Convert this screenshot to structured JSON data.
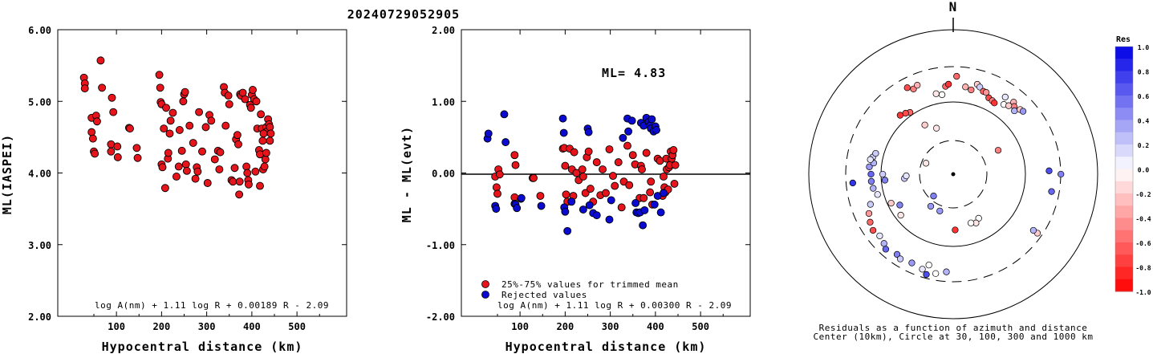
{
  "title": "20240729052905",
  "chart_data": [
    {
      "type": "scatter",
      "panel": "ml-vs-distance",
      "xlabel": "Hypocentral distance (km)",
      "ylabel": "ML(IASPEI)",
      "xticks": [
        "100",
        "200",
        "300",
        "400",
        "500"
      ],
      "yticks": [
        "2.00",
        "3.00",
        "4.00",
        "5.00",
        "6.00"
      ],
      "xlim": [
        -30,
        610
      ],
      "ylim": [
        2.0,
        6.0
      ],
      "formula": "log A(nm) + 1.11 log R + 0.00189 R - 2.09",
      "marker_color": "#e8141c",
      "points": [
        [
          28,
          5.33
        ],
        [
          30,
          5.25
        ],
        [
          30,
          5.18
        ],
        [
          45,
          4.77
        ],
        [
          45,
          4.57
        ],
        [
          48,
          4.48
        ],
        [
          50,
          4.3
        ],
        [
          52,
          4.27
        ],
        [
          55,
          4.8
        ],
        [
          57,
          4.72
        ],
        [
          65,
          5.57
        ],
        [
          68,
          5.19
        ],
        [
          88,
          4.4
        ],
        [
          88,
          4.3
        ],
        [
          90,
          5.05
        ],
        [
          93,
          4.85
        ],
        [
          102,
          4.37
        ],
        [
          103,
          4.22
        ],
        [
          128,
          4.63
        ],
        [
          130,
          4.62
        ],
        [
          145,
          4.35
        ],
        [
          147,
          4.21
        ],
        [
          195,
          5.37
        ],
        [
          197,
          5.19
        ],
        [
          198,
          4.99
        ],
        [
          200,
          4.96
        ],
        [
          200,
          4.12
        ],
        [
          202,
          4.08
        ],
        [
          205,
          4.62
        ],
        [
          208,
          3.79
        ],
        [
          210,
          4.91
        ],
        [
          214,
          4.2
        ],
        [
          215,
          4.28
        ],
        [
          218,
          4.55
        ],
        [
          220,
          4.73
        ],
        [
          225,
          4.84
        ],
        [
          233,
          3.95
        ],
        [
          238,
          4.09
        ],
        [
          240,
          4.6
        ],
        [
          245,
          4.31
        ],
        [
          248,
          5.0
        ],
        [
          250,
          5.1
        ],
        [
          252,
          5.13
        ],
        [
          254,
          4.12
        ],
        [
          256,
          4.03
        ],
        [
          262,
          4.66
        ],
        [
          270,
          4.42
        ],
        [
          275,
          3.92
        ],
        [
          278,
          4.08
        ],
        [
          280,
          4.02
        ],
        [
          283,
          4.85
        ],
        [
          290,
          4.3
        ],
        [
          298,
          4.64
        ],
        [
          302,
          3.86
        ],
        [
          306,
          4.81
        ],
        [
          310,
          4.73
        ],
        [
          318,
          4.19
        ],
        [
          325,
          4.31
        ],
        [
          328,
          4.05
        ],
        [
          330,
          4.29
        ],
        [
          338,
          5.2
        ],
        [
          340,
          5.12
        ],
        [
          342,
          4.66
        ],
        [
          348,
          5.08
        ],
        [
          350,
          4.96
        ],
        [
          355,
          3.9
        ],
        [
          358,
          3.88
        ],
        [
          362,
          4.07
        ],
        [
          365,
          4.47
        ],
        [
          368,
          4.53
        ],
        [
          370,
          4.4
        ],
        [
          372,
          3.7
        ],
        [
          373,
          3.88
        ],
        [
          374,
          5.1
        ],
        [
          376,
          5.08
        ],
        [
          380,
          5.12
        ],
        [
          385,
          5.03
        ],
        [
          388,
          4.09
        ],
        [
          390,
          4.0
        ],
        [
          392,
          3.9
        ],
        [
          393,
          3.84
        ],
        [
          396,
          4.95
        ],
        [
          398,
          4.91
        ],
        [
          400,
          5.09
        ],
        [
          402,
          5.16
        ],
        [
          405,
          5.03
        ],
        [
          408,
          4.02
        ],
        [
          410,
          5.0
        ],
        [
          412,
          4.62
        ],
        [
          416,
          4.32
        ],
        [
          418,
          4.26
        ],
        [
          420,
          4.82
        ],
        [
          422,
          4.62
        ],
        [
          424,
          4.45
        ],
        [
          425,
          4.05
        ],
        [
          428,
          4.09
        ],
        [
          430,
          4.19
        ],
        [
          432,
          4.64
        ],
        [
          434,
          4.58
        ],
        [
          436,
          4.75
        ],
        [
          438,
          4.68
        ],
        [
          440,
          4.64
        ],
        [
          442,
          4.55
        ],
        [
          418,
          3.82
        ],
        [
          432,
          4.28
        ],
        [
          426,
          4.55
        ],
        [
          440,
          4.45
        ]
      ]
    },
    {
      "type": "scatter",
      "panel": "residual-vs-distance",
      "xlabel": "Hypocentral distance (km)",
      "ylabel": "ML - ML(evt)",
      "xticks": [
        "100",
        "200",
        "300",
        "400",
        "500"
      ],
      "yticks": [
        "-2.00",
        "-1.00",
        "0.00",
        "1.00",
        "2.00"
      ],
      "xlim": [
        -30,
        610
      ],
      "ylim": [
        -2.0,
        2.0
      ],
      "annotation": "ML= 4.83",
      "formula": "log A(nm) + 1.11 log R + 0.00300 R - 2.09",
      "legend": [
        "25%-75% values for trimmed mean",
        "Rejected values"
      ],
      "legend_colors": [
        "#e8141c",
        "#0a0ad2"
      ],
      "trimmed_points": [
        [
          45,
          -0.05
        ],
        [
          48,
          -0.2
        ],
        [
          50,
          -0.29
        ],
        [
          52,
          0.05
        ],
        [
          55,
          -0.02
        ],
        [
          88,
          0.25
        ],
        [
          90,
          0.11
        ],
        [
          88,
          -0.34
        ],
        [
          102,
          -0.36
        ],
        [
          128,
          -0.07
        ],
        [
          130,
          -0.07
        ],
        [
          145,
          -0.32
        ],
        [
          195,
          0.34
        ],
        [
          198,
          0.35
        ],
        [
          200,
          0.1
        ],
        [
          202,
          -0.3
        ],
        [
          205,
          -0.4
        ],
        [
          210,
          0.34
        ],
        [
          215,
          0.05
        ],
        [
          218,
          -0.32
        ],
        [
          220,
          0.29
        ],
        [
          225,
          0.0
        ],
        [
          230,
          -0.1
        ],
        [
          238,
          0.05
        ],
        [
          240,
          -0.05
        ],
        [
          245,
          -0.28
        ],
        [
          248,
          0.22
        ],
        [
          252,
          0.3
        ],
        [
          256,
          -0.22
        ],
        [
          262,
          -0.4
        ],
        [
          270,
          0.15
        ],
        [
          278,
          -0.31
        ],
        [
          283,
          0.05
        ],
        [
          290,
          -0.28
        ],
        [
          298,
          0.33
        ],
        [
          306,
          -0.04
        ],
        [
          310,
          -0.18
        ],
        [
          318,
          0.15
        ],
        [
          325,
          -0.48
        ],
        [
          330,
          -0.12
        ],
        [
          338,
          0.38
        ],
        [
          342,
          -0.17
        ],
        [
          350,
          0.25
        ],
        [
          355,
          0.12
        ],
        [
          365,
          -0.35
        ],
        [
          368,
          0.1
        ],
        [
          370,
          0.05
        ],
        [
          374,
          -0.35
        ],
        [
          380,
          0.28
        ],
        [
          388,
          -0.27
        ],
        [
          390,
          -0.12
        ],
        [
          393,
          -0.44
        ],
        [
          405,
          0.2
        ],
        [
          410,
          0.17
        ],
        [
          416,
          -0.32
        ],
        [
          418,
          -0.05
        ],
        [
          420,
          -0.2
        ],
        [
          422,
          -0.27
        ],
        [
          424,
          0.2
        ],
        [
          425,
          0.05
        ],
        [
          428,
          -0.23
        ],
        [
          430,
          0.08
        ],
        [
          432,
          0.11
        ],
        [
          434,
          0.3
        ],
        [
          436,
          0.2
        ],
        [
          438,
          0.25
        ],
        [
          440,
          0.32
        ],
        [
          442,
          -0.15
        ],
        [
          444,
          0.11
        ]
      ],
      "rejected_points": [
        [
          28,
          0.48
        ],
        [
          30,
          0.55
        ],
        [
          45,
          -0.46
        ],
        [
          47,
          -0.5
        ],
        [
          65,
          0.82
        ],
        [
          68,
          0.43
        ],
        [
          88,
          -0.43
        ],
        [
          90,
          -0.44
        ],
        [
          93,
          -0.49
        ],
        [
          103,
          -0.35
        ],
        [
          147,
          -0.46
        ],
        [
          195,
          0.76
        ],
        [
          197,
          0.56
        ],
        [
          198,
          -0.48
        ],
        [
          200,
          -0.54
        ],
        [
          205,
          -0.81
        ],
        [
          214,
          -0.4
        ],
        [
          240,
          -0.51
        ],
        [
          250,
          0.62
        ],
        [
          252,
          0.57
        ],
        [
          254,
          -0.45
        ],
        [
          262,
          -0.56
        ],
        [
          270,
          -0.59
        ],
        [
          298,
          -0.65
        ],
        [
          302,
          -0.38
        ],
        [
          328,
          0.49
        ],
        [
          338,
          0.76
        ],
        [
          340,
          0.58
        ],
        [
          348,
          0.73
        ],
        [
          356,
          -0.42
        ],
        [
          358,
          -0.55
        ],
        [
          362,
          -0.56
        ],
        [
          366,
          -0.55
        ],
        [
          368,
          0.7
        ],
        [
          372,
          -0.73
        ],
        [
          374,
          0.66
        ],
        [
          376,
          -0.52
        ],
        [
          380,
          0.77
        ],
        [
          385,
          0.71
        ],
        [
          388,
          0.66
        ],
        [
          390,
          0.62
        ],
        [
          392,
          0.75
        ],
        [
          396,
          0.58
        ],
        [
          398,
          -0.44
        ],
        [
          400,
          0.65
        ],
        [
          402,
          0.6
        ],
        [
          405,
          -0.32
        ],
        [
          412,
          -0.55
        ],
        [
          418,
          -0.28
        ]
      ]
    },
    {
      "type": "polar-scatter",
      "panel": "residuals-map",
      "north_label": "N",
      "caption_line1": "Residuals as a function of azimuth and distance",
      "caption_line2": "Center (10km), Circle at 30, 100, 300 and 1000 km",
      "colorbar_title": "Res",
      "colorbar_ticks": [
        "1.0",
        "0.8",
        "0.6",
        "0.4",
        "0.2",
        "0.0",
        "-0.2",
        "-0.4",
        "-0.6",
        "-0.8",
        "-1.0"
      ],
      "rings_km": [
        30,
        100,
        300,
        1000
      ],
      "stations": [
        [
          2,
          100,
          -0.6
        ],
        [
          8,
          90,
          -0.3
        ],
        [
          12,
          88,
          -0.5
        ],
        [
          15,
          95,
          -0.2
        ],
        [
          17,
          93,
          0.2
        ],
        [
          20,
          90,
          -0.6
        ],
        [
          22,
          90,
          -0.4
        ],
        [
          25,
          86,
          -0.7
        ],
        [
          28,
          85,
          -0.5
        ],
        [
          30,
          84,
          -0.8
        ],
        [
          34,
          95,
          0.1
        ],
        [
          40,
          96,
          -0.3
        ],
        [
          42,
          93,
          -0.5
        ],
        [
          44,
          90,
          0.3
        ],
        [
          46,
          95,
          -0.2
        ],
        [
          48,
          96,
          0.4
        ],
        [
          36,
          88,
          0.0
        ],
        [
          39,
          90,
          -0.2
        ],
        [
          -5,
          90,
          -0.6
        ],
        [
          -3,
          92,
          -0.8
        ],
        [
          -25,
          96,
          -0.5
        ],
        [
          -22,
          98,
          -0.3
        ],
        [
          -28,
          100,
          -0.7
        ],
        [
          -8,
          82,
          0.0
        ],
        [
          -12,
          84,
          -0.1
        ],
        [
          -35,
          77,
          -0.6
        ],
        [
          -38,
          79,
          -0.7
        ],
        [
          -42,
          81,
          -0.8
        ],
        [
          -30,
          58,
          -0.2
        ],
        [
          -20,
          50,
          -0.1
        ],
        [
          62,
          52,
          -0.5
        ],
        [
          88,
          98,
          0.7
        ],
        [
          100,
          102,
          0.6
        ],
        [
          90,
          110,
          0.5
        ],
        [
          125,
          105,
          -0.2
        ],
        [
          125,
          100,
          0.3
        ],
        [
          150,
          52,
          0.0
        ],
        [
          155,
          55,
          -0.1
        ],
        [
          178,
          57,
          -0.8
        ],
        [
          160,
          53,
          0.0
        ],
        [
          200,
          40,
          0.4
        ],
        [
          222,
          30,
          0.5
        ],
        [
          215,
          40,
          0.4
        ],
        [
          240,
          63,
          0.5
        ],
        [
          245,
          70,
          -0.2
        ],
        [
          232,
          68,
          -0.1
        ],
        [
          255,
          80,
          0.1
        ],
        [
          260,
          83,
          0.3
        ],
        [
          265,
          84,
          0.5
        ],
        [
          270,
          84,
          0.6
        ],
        [
          275,
          86,
          0.4
        ],
        [
          278,
          82,
          0.3
        ],
        [
          282,
          84,
          0.2
        ],
        [
          280,
          86,
          0.1
        ],
        [
          285,
          82,
          0.2
        ],
        [
          250,
          90,
          0.2
        ],
        [
          245,
          95,
          -0.4
        ],
        [
          240,
          98,
          -0.6
        ],
        [
          235,
          100,
          -0.7
        ],
        [
          230,
          98,
          0.1
        ],
        [
          225,
          100,
          0.3
        ],
        [
          222,
          103,
          0.6
        ],
        [
          215,
          100,
          0.5
        ],
        [
          212,
          102,
          0.2
        ],
        [
          205,
          100,
          0.4
        ],
        [
          198,
          102,
          0.1
        ],
        [
          195,
          96,
          0.0
        ],
        [
          190,
          103,
          0.0
        ],
        [
          184,
          100,
          0.3
        ],
        [
          195,
          106,
          0.7
        ],
        [
          265,
          103,
          0.8
        ],
        [
          270,
          72,
          0.2
        ],
        [
          265,
          50,
          0.2
        ],
        [
          268,
          48,
          0.1
        ],
        [
          292,
          30,
          -0.1
        ],
        [
          265,
          70,
          0.5
        ]
      ]
    }
  ]
}
